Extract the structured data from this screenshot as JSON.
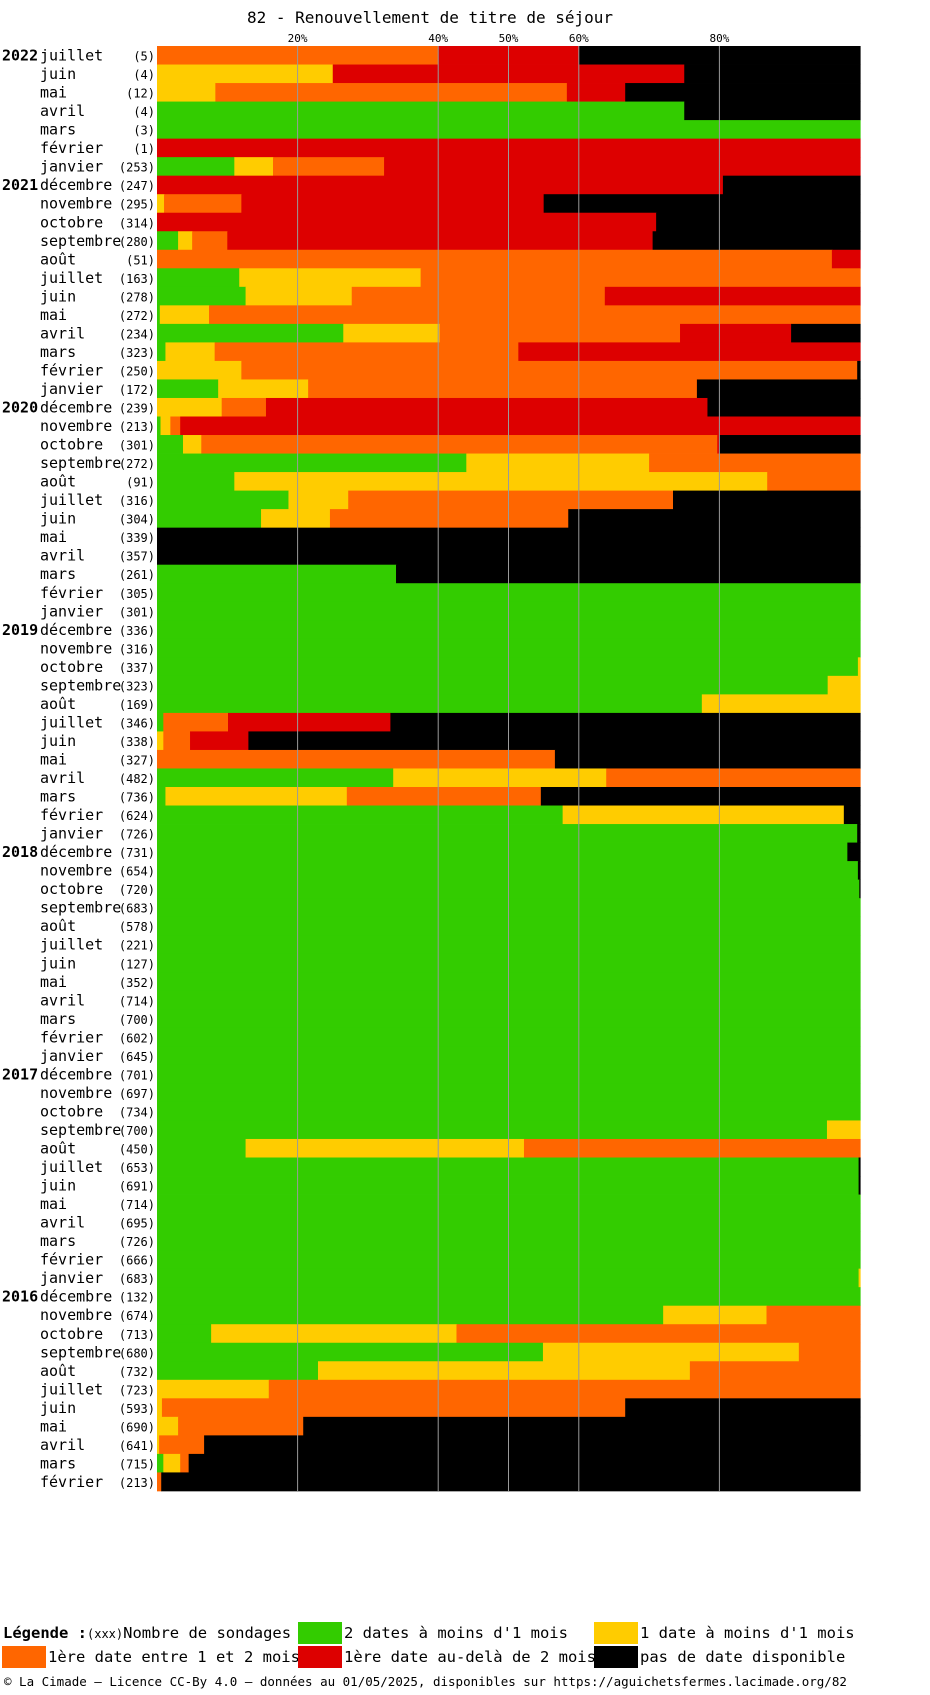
{
  "title": "82 - Renouvellement de titre de séjour",
  "legend": {
    "heading": "Légende :",
    "count_label": "(xxx)",
    "count_desc": "Nombre de sondages",
    "items": [
      {
        "key": "green",
        "label": "2 dates à moins d'1 mois"
      },
      {
        "key": "yellow",
        "label": "1 date à moins d'1 mois"
      },
      {
        "key": "orange",
        "label": "1ère date entre 1 et 2 mois"
      },
      {
        "key": "red",
        "label": "1ère date au-delà de 2 mois"
      },
      {
        "key": "black",
        "label": "pas de date disponible"
      }
    ]
  },
  "footer": "© La Cimade – Licence CC-By 4.0 – données au 01/05/2025, disponibles sur https://aguichetsfermes.lacimade.org/82",
  "colors": {
    "green": "#33cc00",
    "yellow": "#ffcc00",
    "orange": "#ff6600",
    "red": "#dd0000",
    "black": "#000000"
  },
  "chart_data": {
    "type": "bar",
    "orientation": "horizontal",
    "stacked": true,
    "unit": "%",
    "x_ticks": [
      "20%",
      "40%",
      "50%",
      "60%",
      "80%"
    ],
    "x_tick_values": [
      20,
      40,
      50,
      60,
      80
    ],
    "xlim": [
      0,
      100
    ],
    "series_order": [
      "green",
      "yellow",
      "orange",
      "red",
      "black"
    ],
    "rows": [
      {
        "year": "2022",
        "month": "juillet",
        "n": "(5)",
        "v": [
          0,
          0,
          40,
          20,
          40
        ]
      },
      {
        "year": "",
        "month": "juin",
        "n": "(4)",
        "v": [
          0,
          25,
          0,
          50,
          25
        ]
      },
      {
        "year": "",
        "month": "mai",
        "n": "(12)",
        "v": [
          0,
          8.3,
          50,
          8.3,
          33.4
        ]
      },
      {
        "year": "",
        "month": "avril",
        "n": "(4)",
        "v": [
          75,
          0,
          0,
          0,
          25
        ]
      },
      {
        "year": "",
        "month": "mars",
        "n": "(3)",
        "v": [
          100,
          0,
          0,
          0,
          0
        ]
      },
      {
        "year": "",
        "month": "février",
        "n": "(1)",
        "v": [
          0,
          0,
          0,
          100,
          0
        ]
      },
      {
        "year": "",
        "month": "janvier",
        "n": "(253)",
        "v": [
          11,
          5.5,
          15.8,
          67.7,
          0
        ]
      },
      {
        "year": "2021",
        "month": "décembre",
        "n": "(247)",
        "v": [
          0,
          0,
          0,
          80.5,
          19.5
        ]
      },
      {
        "year": "",
        "month": "novembre",
        "n": "(295)",
        "v": [
          0,
          1,
          11,
          43,
          45
        ]
      },
      {
        "year": "",
        "month": "octobre",
        "n": "(314)",
        "v": [
          0,
          0,
          0,
          71,
          29
        ]
      },
      {
        "year": "",
        "month": "septembre",
        "n": "(280)",
        "v": [
          3,
          2,
          5,
          60.5,
          29.5
        ]
      },
      {
        "year": "",
        "month": "août",
        "n": "(51)",
        "v": [
          0,
          0,
          96,
          4,
          0
        ]
      },
      {
        "year": "",
        "month": "juillet",
        "n": "(163)",
        "v": [
          11.7,
          25.8,
          62.5,
          0,
          0
        ]
      },
      {
        "year": "",
        "month": "juin",
        "n": "(278)",
        "v": [
          12.6,
          15.1,
          36,
          36.3,
          0
        ]
      },
      {
        "year": "",
        "month": "mai",
        "n": "(272)",
        "v": [
          0.4,
          7,
          92.6,
          0,
          0
        ]
      },
      {
        "year": "",
        "month": "avril",
        "n": "(234)",
        "v": [
          26.5,
          13.7,
          34.2,
          15.8,
          9.8
        ]
      },
      {
        "year": "",
        "month": "mars",
        "n": "(323)",
        "v": [
          1.2,
          7,
          43.2,
          48.6,
          0
        ]
      },
      {
        "year": "",
        "month": "février",
        "n": "(250)",
        "v": [
          0,
          12,
          87.6,
          0,
          0.4
        ]
      },
      {
        "year": "",
        "month": "janvier",
        "n": "(172)",
        "v": [
          8.7,
          12.8,
          55.3,
          0,
          23.2
        ]
      },
      {
        "year": "2020",
        "month": "décembre",
        "n": "(239)",
        "v": [
          0,
          9.2,
          6.3,
          62.8,
          21.7
        ]
      },
      {
        "year": "",
        "month": "novembre",
        "n": "(213)",
        "v": [
          0.5,
          1.4,
          1.4,
          96.7,
          0
        ]
      },
      {
        "year": "",
        "month": "octobre",
        "n": "(301)",
        "v": [
          3.7,
          2.6,
          73.4,
          0.3,
          20
        ]
      },
      {
        "year": "",
        "month": "septembre",
        "n": "(272)",
        "v": [
          44,
          26,
          30,
          0,
          0
        ]
      },
      {
        "year": "",
        "month": "août",
        "n": "(91)",
        "v": [
          11,
          75.8,
          13.2,
          0,
          0
        ]
      },
      {
        "year": "",
        "month": "juillet",
        "n": "(316)",
        "v": [
          18.7,
          8.5,
          46.2,
          0,
          26.6
        ]
      },
      {
        "year": "",
        "month": "juin",
        "n": "(304)",
        "v": [
          14.8,
          9.8,
          33.9,
          0,
          41.5
        ]
      },
      {
        "year": "",
        "month": "mai",
        "n": "(339)",
        "v": [
          0,
          0,
          0,
          0,
          100
        ]
      },
      {
        "year": "",
        "month": "avril",
        "n": "(357)",
        "v": [
          0,
          0,
          0,
          0,
          100
        ]
      },
      {
        "year": "",
        "month": "mars",
        "n": "(261)",
        "v": [
          34,
          0,
          0,
          0,
          66
        ]
      },
      {
        "year": "",
        "month": "février",
        "n": "(305)",
        "v": [
          100,
          0,
          0,
          0,
          0
        ]
      },
      {
        "year": "",
        "month": "janvier",
        "n": "(301)",
        "v": [
          100,
          0,
          0,
          0,
          0
        ]
      },
      {
        "year": "2019",
        "month": "décembre",
        "n": "(336)",
        "v": [
          100,
          0,
          0,
          0,
          0
        ]
      },
      {
        "year": "",
        "month": "novembre",
        "n": "(316)",
        "v": [
          100,
          0,
          0,
          0,
          0
        ]
      },
      {
        "year": "",
        "month": "octobre",
        "n": "(337)",
        "v": [
          99.7,
          0.3,
          0,
          0,
          0
        ]
      },
      {
        "year": "",
        "month": "septembre",
        "n": "(323)",
        "v": [
          95.4,
          4.6,
          0,
          0,
          0
        ]
      },
      {
        "year": "",
        "month": "août",
        "n": "(169)",
        "v": [
          77.5,
          22.5,
          0,
          0,
          0
        ]
      },
      {
        "year": "",
        "month": "juillet",
        "n": "(346)",
        "v": [
          0.9,
          0,
          9.2,
          23.1,
          66.8
        ]
      },
      {
        "year": "",
        "month": "juin",
        "n": "(338)",
        "v": [
          0,
          0.9,
          3.8,
          8.3,
          87
        ]
      },
      {
        "year": "",
        "month": "mai",
        "n": "(327)",
        "v": [
          0,
          0,
          56.6,
          0,
          43.4
        ]
      },
      {
        "year": "",
        "month": "avril",
        "n": "(482)",
        "v": [
          33.6,
          30.3,
          36.1,
          0,
          0
        ]
      },
      {
        "year": "",
        "month": "mars",
        "n": "(736)",
        "v": [
          1.2,
          25.8,
          27.6,
          0,
          45.4
        ]
      },
      {
        "year": "",
        "month": "février",
        "n": "(624)",
        "v": [
          57.7,
          40,
          0,
          0,
          2.3
        ]
      },
      {
        "year": "",
        "month": "janvier",
        "n": "(726)",
        "v": [
          99.6,
          0,
          0,
          0,
          0.4
        ]
      },
      {
        "year": "2018",
        "month": "décembre",
        "n": "(731)",
        "v": [
          98.2,
          0,
          0,
          0,
          1.8
        ]
      },
      {
        "year": "",
        "month": "novembre",
        "n": "(654)",
        "v": [
          99.7,
          0,
          0,
          0,
          0.3
        ]
      },
      {
        "year": "",
        "month": "octobre",
        "n": "(720)",
        "v": [
          99.9,
          0,
          0,
          0,
          0.1
        ]
      },
      {
        "year": "",
        "month": "septembre",
        "n": "(683)",
        "v": [
          100,
          0,
          0,
          0,
          0
        ]
      },
      {
        "year": "",
        "month": "août",
        "n": "(578)",
        "v": [
          100,
          0,
          0,
          0,
          0
        ]
      },
      {
        "year": "",
        "month": "juillet",
        "n": "(221)",
        "v": [
          100,
          0,
          0,
          0,
          0
        ]
      },
      {
        "year": "",
        "month": "juin",
        "n": "(127)",
        "v": [
          100,
          0,
          0,
          0,
          0
        ]
      },
      {
        "year": "",
        "month": "mai",
        "n": "(352)",
        "v": [
          100,
          0,
          0,
          0,
          0
        ]
      },
      {
        "year": "",
        "month": "avril",
        "n": "(714)",
        "v": [
          100,
          0,
          0,
          0,
          0
        ]
      },
      {
        "year": "",
        "month": "mars",
        "n": "(700)",
        "v": [
          100,
          0,
          0,
          0,
          0
        ]
      },
      {
        "year": "",
        "month": "février",
        "n": "(602)",
        "v": [
          100,
          0,
          0,
          0,
          0
        ]
      },
      {
        "year": "",
        "month": "janvier",
        "n": "(645)",
        "v": [
          100,
          0,
          0,
          0,
          0
        ]
      },
      {
        "year": "2017",
        "month": "décembre",
        "n": "(701)",
        "v": [
          100,
          0,
          0,
          0,
          0
        ]
      },
      {
        "year": "",
        "month": "novembre",
        "n": "(697)",
        "v": [
          100,
          0,
          0,
          0,
          0
        ]
      },
      {
        "year": "",
        "month": "octobre",
        "n": "(734)",
        "v": [
          100,
          0,
          0,
          0,
          0
        ]
      },
      {
        "year": "",
        "month": "septembre",
        "n": "(700)",
        "v": [
          95.3,
          4.7,
          0,
          0,
          0
        ]
      },
      {
        "year": "",
        "month": "août",
        "n": "(450)",
        "v": [
          12.6,
          39.6,
          47.8,
          0,
          0
        ]
      },
      {
        "year": "",
        "month": "juillet",
        "n": "(653)",
        "v": [
          99.8,
          0,
          0,
          0,
          0.2
        ]
      },
      {
        "year": "",
        "month": "juin",
        "n": "(691)",
        "v": [
          99.8,
          0,
          0,
          0,
          0.2
        ]
      },
      {
        "year": "",
        "month": "mai",
        "n": "(714)",
        "v": [
          100,
          0,
          0,
          0,
          0
        ]
      },
      {
        "year": "",
        "month": "avril",
        "n": "(695)",
        "v": [
          100,
          0,
          0,
          0,
          0
        ]
      },
      {
        "year": "",
        "month": "mars",
        "n": "(726)",
        "v": [
          100,
          0,
          0,
          0,
          0
        ]
      },
      {
        "year": "",
        "month": "février",
        "n": "(666)",
        "v": [
          100,
          0,
          0,
          0,
          0
        ]
      },
      {
        "year": "",
        "month": "janvier",
        "n": "(683)",
        "v": [
          99.8,
          0.2,
          0,
          0,
          0
        ]
      },
      {
        "year": "2016",
        "month": "décembre",
        "n": "(132)",
        "v": [
          100,
          0,
          0,
          0,
          0
        ]
      },
      {
        "year": "",
        "month": "novembre",
        "n": "(674)",
        "v": [
          72,
          14.7,
          13.3,
          0,
          0
        ]
      },
      {
        "year": "",
        "month": "octobre",
        "n": "(713)",
        "v": [
          7.7,
          34.9,
          57.4,
          0,
          0
        ]
      },
      {
        "year": "",
        "month": "septembre",
        "n": "(680)",
        "v": [
          54.9,
          36.4,
          8.7,
          0,
          0
        ]
      },
      {
        "year": "",
        "month": "août",
        "n": "(732)",
        "v": [
          22.9,
          52.9,
          24.2,
          0,
          0
        ]
      },
      {
        "year": "",
        "month": "juillet",
        "n": "(723)",
        "v": [
          0,
          15.9,
          84.1,
          0,
          0
        ]
      },
      {
        "year": "",
        "month": "juin",
        "n": "(593)",
        "v": [
          0,
          0.7,
          65.9,
          0,
          33.4
        ]
      },
      {
        "year": "",
        "month": "mai",
        "n": "(690)",
        "v": [
          0,
          3,
          17.8,
          0,
          79.2
        ]
      },
      {
        "year": "",
        "month": "avril",
        "n": "(641)",
        "v": [
          0,
          0.3,
          6.4,
          0,
          93.3
        ]
      },
      {
        "year": "",
        "month": "mars",
        "n": "(715)",
        "v": [
          0.9,
          2.4,
          1.2,
          0,
          95.5
        ]
      },
      {
        "year": "",
        "month": "février",
        "n": "(213)",
        "v": [
          0,
          0,
          0.6,
          0,
          99.4
        ]
      }
    ]
  }
}
